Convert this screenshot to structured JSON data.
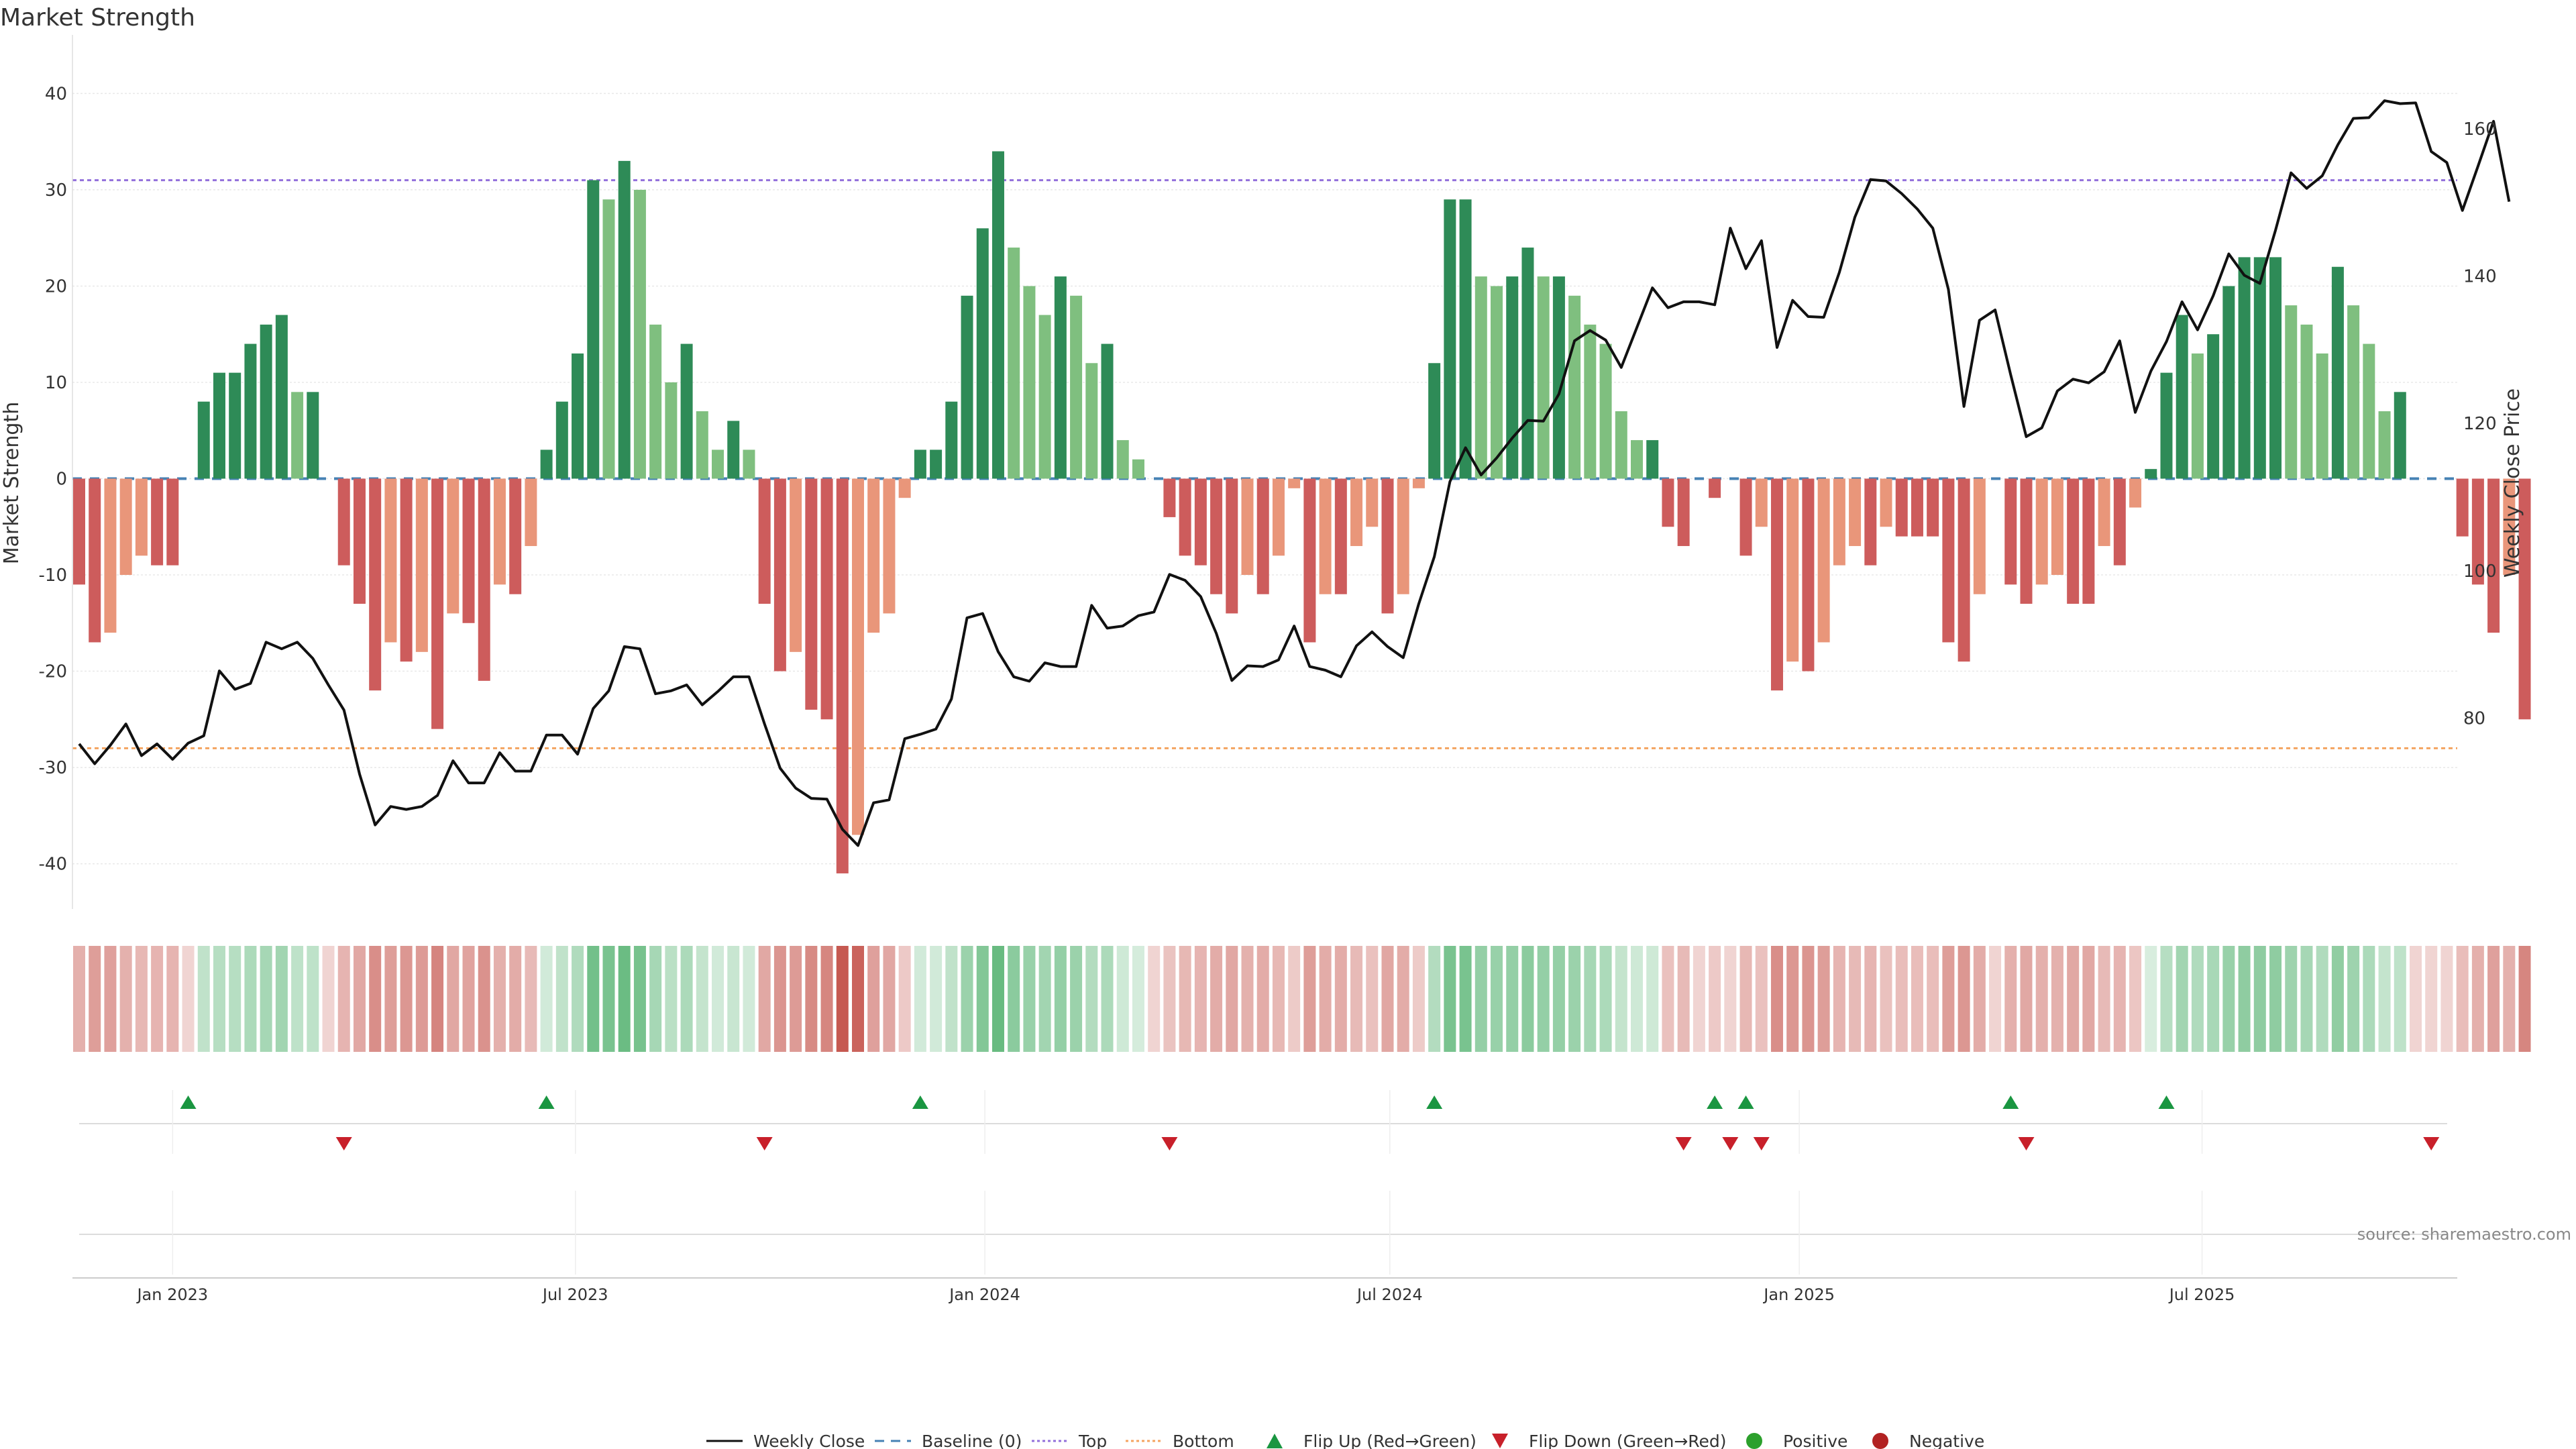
{
  "chart_data": {
    "type": "bar+line",
    "title": "Market Strength",
    "ylabel_left": "Market Strength",
    "ylabel_right": "Weekly Close Price",
    "ylim_left": [
      -44,
      44
    ],
    "yticks_left": [
      -40,
      -30,
      -20,
      -10,
      0,
      10,
      20,
      30,
      40
    ],
    "ylim_right": [
      55,
      170
    ],
    "yticks_right": [
      80,
      100,
      120,
      140,
      160
    ],
    "top_threshold": 31,
    "bottom_threshold": -28,
    "x_start": "2022-11-20",
    "week_step_days": 7,
    "x_ticks": [
      {
        "date": "2023-01-01",
        "label": "Jan 2023"
      },
      {
        "date": "2023-07-01",
        "label": "Jul 2023"
      },
      {
        "date": "2024-01-01",
        "label": "Jan 2024"
      },
      {
        "date": "2024-07-01",
        "label": "Jul 2024"
      },
      {
        "date": "2025-01-01",
        "label": "Jan 2025"
      },
      {
        "date": "2025-07-01",
        "label": "Jul 2025"
      }
    ],
    "strength": [
      -11,
      -17,
      -16,
      -10,
      -8,
      -9,
      -9,
      0,
      8,
      11,
      11,
      14,
      16,
      17,
      9,
      9,
      0,
      -9,
      -13,
      -22,
      -17,
      -19,
      -18,
      -26,
      -14,
      -15,
      -21,
      -11,
      -12,
      -7,
      3,
      8,
      13,
      31,
      29,
      33,
      30,
      16,
      10,
      14,
      7,
      3,
      6,
      3,
      -13,
      -20,
      -18,
      -24,
      -25,
      -41,
      -37,
      -16,
      -14,
      -2,
      3,
      3,
      8,
      19,
      26,
      34,
      24,
      20,
      17,
      21,
      19,
      12,
      14,
      4,
      2,
      0,
      -4,
      -8,
      -9,
      -12,
      -14,
      -10,
      -12,
      -8,
      -1,
      -17,
      -12,
      -12,
      -7,
      -5,
      -14,
      -12,
      -1,
      12,
      29,
      29,
      21,
      20,
      21,
      24,
      21,
      21,
      19,
      16,
      14,
      7,
      4,
      4,
      -5,
      -7,
      0,
      -2,
      0,
      -8,
      -5,
      -22,
      -19,
      -20,
      -17,
      -9,
      -7,
      -9,
      -5,
      -6,
      -6,
      -6,
      -17,
      -19,
      -12,
      0,
      -11,
      -13,
      -11,
      -10,
      -13,
      -13,
      -7,
      -9,
      -3,
      1,
      11,
      17,
      13,
      15,
      20,
      23,
      23,
      23,
      18,
      16,
      13,
      22,
      18,
      14,
      7,
      9,
      0,
      0,
      0,
      -6,
      -11,
      -16,
      -10,
      -25
    ],
    "price": [
      76.5,
      73.8,
      76.3,
      79.2,
      74.9,
      76.5,
      74.4,
      76.6,
      77.6,
      86.4,
      83.9,
      84.7,
      90.3,
      89.4,
      90.3,
      88.1,
      84.5,
      81.1,
      72.4,
      65.5,
      68.0,
      67.6,
      68.0,
      69.5,
      74.2,
      71.2,
      71.2,
      75.3,
      72.8,
      72.8,
      77.7,
      77.7,
      75.1,
      81.3,
      83.7,
      89.7,
      89.4,
      83.3,
      83.7,
      84.5,
      81.8,
      83.6,
      85.6,
      85.6,
      79.2,
      73.2,
      70.5,
      69.1,
      69.0,
      64.9,
      62.7,
      68.5,
      68.9,
      77.2,
      77.8,
      78.5,
      82.6,
      93.6,
      94.2,
      89.0,
      85.6,
      85.0,
      87.5,
      87.0,
      87.0,
      95.3,
      92.2,
      92.5,
      93.9,
      94.4,
      99.5,
      98.7,
      96.5,
      91.5,
      85.1,
      87.1,
      87.0,
      87.9,
      92.5,
      87.0,
      86.5,
      85.6,
      89.8,
      91.7,
      89.7,
      88.2,
      95.5,
      101.9,
      112.1,
      116.7,
      113.0,
      115.3,
      118.0,
      120.4,
      120.3,
      124.0,
      131.2,
      132.6,
      131.3,
      127.6,
      133.0,
      138.4,
      135.7,
      136.5,
      136.5,
      136.1,
      146.5,
      141.0,
      144.8,
      130.3,
      136.7,
      134.5,
      134.4,
      140.5,
      148.0,
      153.1,
      152.9,
      151.2,
      149.1,
      146.5,
      138.2,
      122.3,
      134.0,
      135.4,
      126.6,
      118.2,
      119.4,
      124.4,
      126.0,
      125.5,
      127.0,
      131.2,
      121.5,
      127.1,
      131.1,
      136.5,
      132.7,
      137.3,
      143.0,
      140.1,
      139.0,
      146.2,
      154.0,
      151.9,
      153.6,
      157.8,
      161.4,
      161.5,
      163.8,
      163.4,
      163.5,
      156.9,
      155.4,
      148.9,
      154.9,
      161.0,
      150.1
    ],
    "flip_up_weeks": [
      7,
      30,
      54,
      87,
      105,
      107,
      124,
      134
    ],
    "flip_down_weeks": [
      17,
      44,
      70,
      103,
      106,
      108,
      125,
      151
    ],
    "source": "source: sharemaestro.com",
    "legend": [
      "Weekly Close",
      "Baseline (0)",
      "Top",
      "Bottom",
      "Flip Up (Red→Green)",
      "Flip Down (Green→Red)",
      "Positive",
      "Negative"
    ],
    "colors": {
      "pos_strong": "#2e8b57",
      "pos_light": "#7fbf7f",
      "neg_strong": "#cd5c5c",
      "neg_light": "#e9967a",
      "line": "#111111",
      "baseline": "#4682b4",
      "top": "#9370db",
      "bottom": "#f4a460",
      "flip_up": "#1a9641",
      "flip_down": "#c8202a",
      "positive_dot": "#2ca02c",
      "negative_dot": "#b22222"
    }
  }
}
